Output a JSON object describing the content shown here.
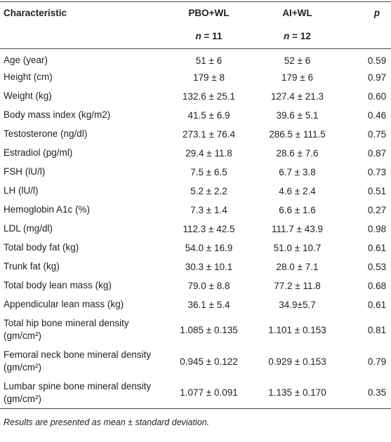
{
  "table": {
    "header": {
      "characteristic": "Characteristic",
      "groups": [
        "PBO+WL",
        "AI+WL"
      ],
      "p": "p",
      "n_symbol": "n",
      "n_values": [
        "= 11",
        "= 12"
      ]
    },
    "rows": [
      [
        "Age (year)",
        "51 ± 6",
        "52 ± 6",
        "0.59"
      ],
      [
        "Height (cm)",
        "179 ± 8",
        "179 ± 6",
        "0.97"
      ],
      [
        "Weight (kg)",
        "132.6 ± 25.1",
        "127.4 ± 21.3",
        "0.60"
      ],
      [
        "Body mass index (kg/m2)",
        "41.5 ± 6.9",
        "39.6 ± 5.1",
        "0.46"
      ],
      [
        "Testosterone (ng/dl)",
        "273.1 ± 76.4",
        "286.5 ± 111.5",
        "0.75"
      ],
      [
        "Estradiol (pg/ml)",
        "29.4 ± 11.8",
        "28.6 ± 7.6",
        "0.87"
      ],
      [
        "FSH (lU/l)",
        "7.5 ± 6.5",
        "6.7 ± 3.8",
        "0.73"
      ],
      [
        "LH (lU/l)",
        "5.2 ± 2.2",
        "4.6 ± 2.4",
        "0.51"
      ],
      [
        "Hemoglobin A1c (%)",
        "7.3 ± 1.4",
        "6.6 ± 1.6",
        "0.27"
      ],
      [
        "LDL (mg/dl)",
        "112.3 ± 42.5",
        "111.7 ± 43.9",
        "0.98"
      ],
      [
        "Total body fat (kg)",
        "54.0 ± 16.9",
        "51.0 ± 10.7",
        "0.61"
      ],
      [
        "Trunk fat (kg)",
        "30.3 ± 10.1",
        "28.0 ± 7.1",
        "0.53"
      ],
      [
        "Total body lean mass (kg)",
        "79.0 ± 8.8",
        "77.2 ± 11.8",
        "0.68"
      ],
      [
        "Appendicular lean mass (kg)",
        "36.1 ± 5.4",
        "34.9±5.7",
        "0.61"
      ],
      [
        "Total hip bone mineral density (gm/cm²)",
        "1.085 ± 0.135",
        "1.101 ± 0.153",
        "0.81"
      ],
      [
        "Femoral neck bone mineral density (gm/cm²)",
        "0.945 ± 0.122",
        "0.929 ± 0.153",
        "0.79"
      ],
      [
        "Lumbar spine bone mineral density (gm/cm²)",
        "1.077 ± 0.091",
        "1.135 ± 0.170",
        "0.35"
      ]
    ],
    "footnote": "Results are presented as mean ± standard deviation."
  }
}
